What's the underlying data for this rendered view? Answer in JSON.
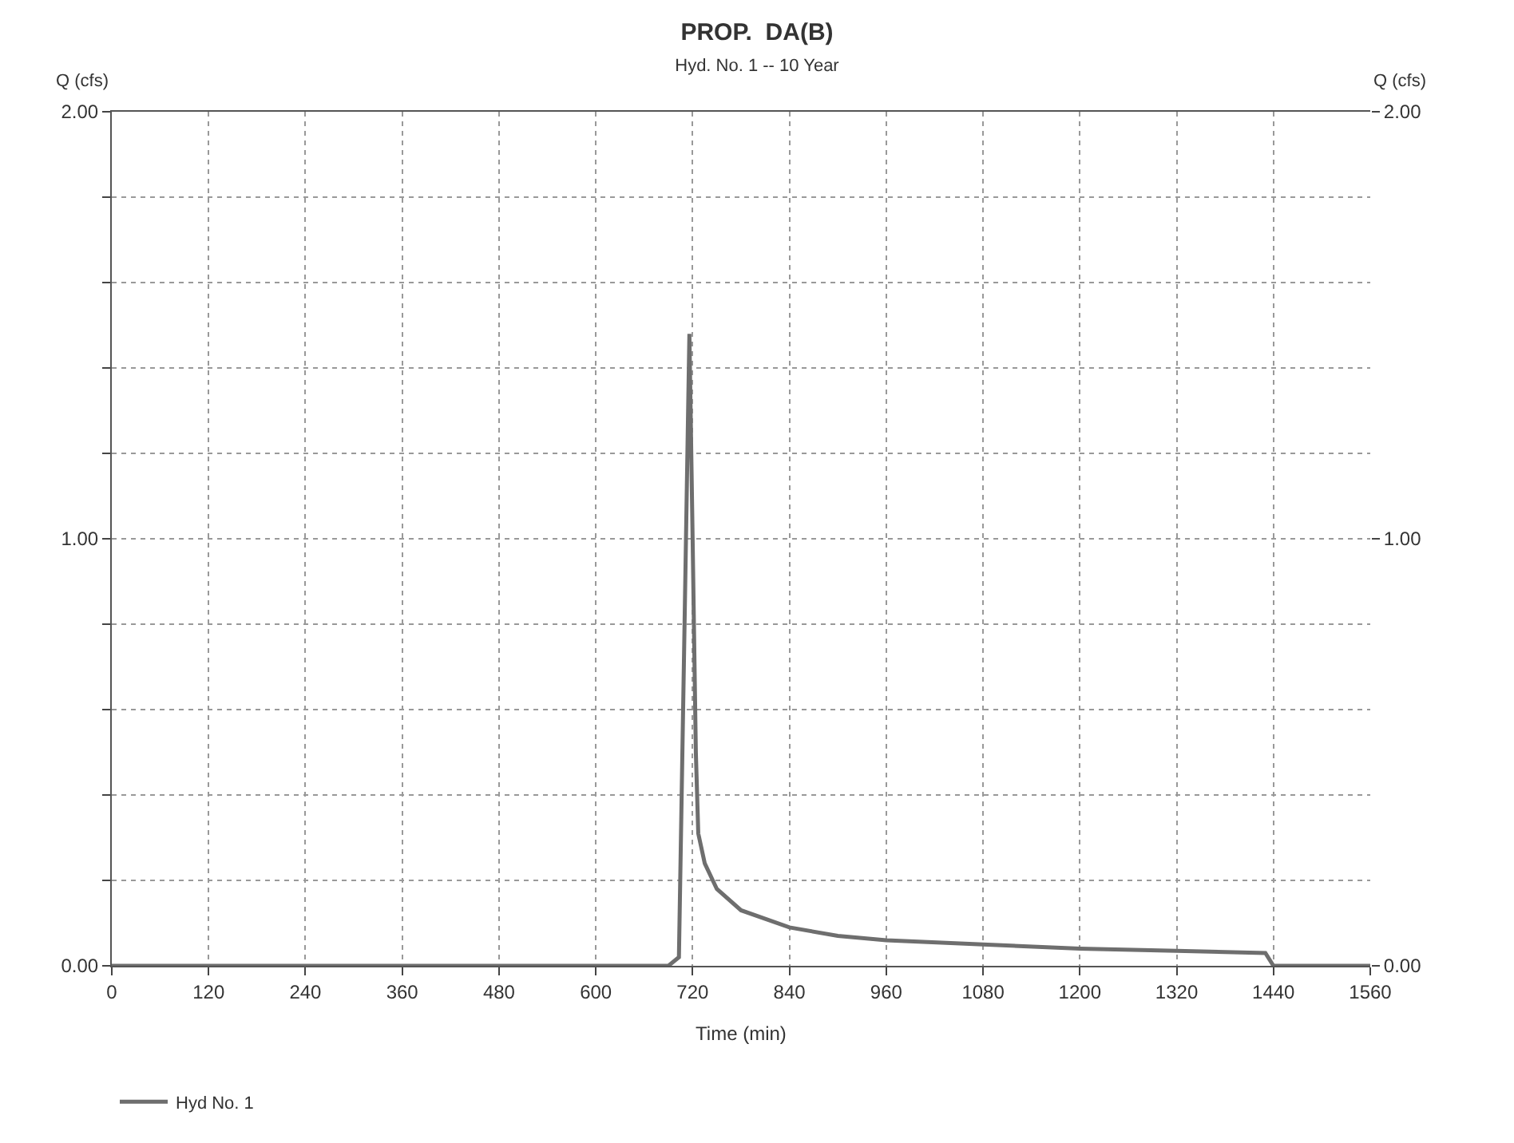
{
  "chart_data": {
    "type": "line",
    "title": "PROP.  DA(B)",
    "subtitle": "Hyd. No. 1 -- 10 Year",
    "xlabel": "Time (min)",
    "ylabel": "Q (cfs)",
    "y2label": "Q (cfs)",
    "series": [
      {
        "name": "Hyd No. 1",
        "color": "#6e6e6e",
        "x": [
          0,
          100,
          300,
          500,
          690,
          703,
          710,
          716,
          720,
          724,
          727,
          735,
          750,
          780,
          840,
          900,
          960,
          1080,
          1200,
          1320,
          1430,
          1440,
          1450,
          1500,
          1560
        ],
        "values": [
          0,
          0,
          0,
          0,
          0,
          0.02,
          0.8,
          1.48,
          1.0,
          0.5,
          0.31,
          0.24,
          0.18,
          0.13,
          0.09,
          0.07,
          0.06,
          0.05,
          0.04,
          0.035,
          0.03,
          0.0,
          0,
          0,
          0
        ]
      }
    ],
    "xlim": [
      0,
      1560
    ],
    "xticks": [
      0,
      120,
      240,
      360,
      480,
      600,
      720,
      840,
      960,
      1080,
      1200,
      1320,
      1440,
      1560
    ],
    "ylim": [
      0,
      2
    ],
    "yticks": [
      {
        "value": 0,
        "label": "0.00"
      },
      {
        "value": 0.2,
        "label": null
      },
      {
        "value": 0.4,
        "label": null
      },
      {
        "value": 0.6,
        "label": null
      },
      {
        "value": 0.8,
        "label": null
      },
      {
        "value": 1,
        "label": "1.00"
      },
      {
        "value": 1.2,
        "label": null
      },
      {
        "value": 1.4,
        "label": null
      },
      {
        "value": 1.6,
        "label": null
      },
      {
        "value": 1.8,
        "label": null
      },
      {
        "value": 2,
        "label": "2.00"
      }
    ],
    "y2lim": [
      0,
      2
    ],
    "y2ticks": [
      {
        "value": 0,
        "label": "0.00"
      },
      {
        "value": 1,
        "label": "1.00"
      },
      {
        "value": 2,
        "label": "2.00"
      }
    ],
    "grid": true,
    "legend": "bottom left",
    "marker": "none",
    "line_style": "solid"
  }
}
